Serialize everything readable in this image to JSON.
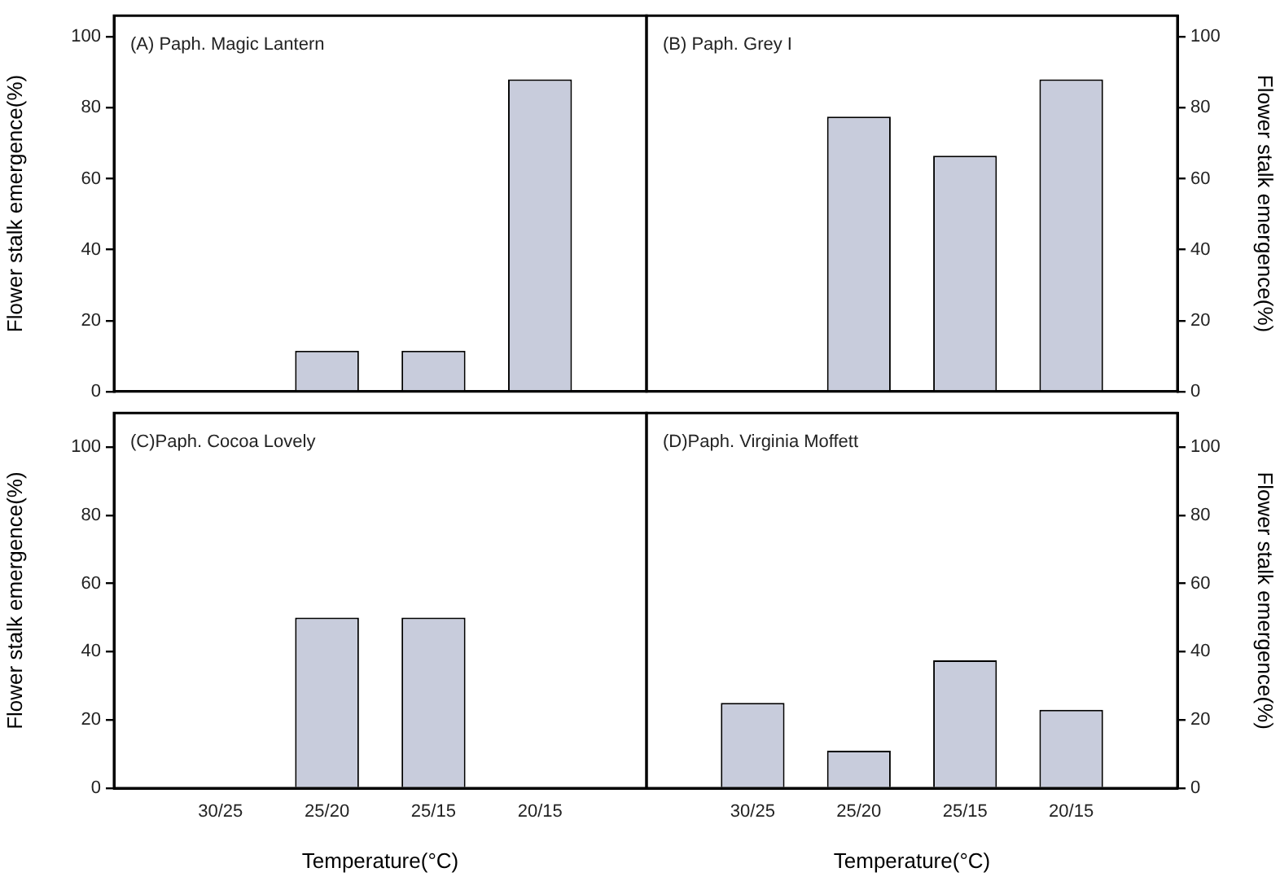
{
  "chart_data": [
    {
      "type": "bar",
      "title": "(A) Paph. Magic Lantern",
      "ylabel": "Flower stalk emergence(%)",
      "categories": [
        null,
        null,
        null,
        null
      ],
      "values": [
        0,
        11.5,
        11.5,
        88
      ],
      "color": "#c8ccdc",
      "ylim": [
        0,
        106
      ],
      "yticks": [
        0,
        20,
        40,
        60,
        80,
        100
      ],
      "tick_labels": "y"
    },
    {
      "type": "bar",
      "title": "(B) Paph. Grey I",
      "y2label": "Flower stalk emergence(%)",
      "categories": [
        null,
        null,
        null,
        null
      ],
      "series": [
        {
          "values": [
            0,
            77.5,
            66.5,
            88
          ],
          "color": "#c8ccdc",
          "axis": "y2"
        }
      ],
      "y2lim": [
        0,
        106
      ],
      "y2ticks": [
        0,
        20,
        40,
        60,
        80,
        100
      ],
      "tick_labels": "y"
    },
    {
      "type": "bar",
      "title": "(C)Paph. Cocoa Lovely",
      "xlabel": "Temperature(°C)",
      "ylabel": "Flower stalk emergence(%)",
      "categories": [
        "30/25",
        "25/20",
        "25/15",
        "20/15"
      ],
      "values": [
        0,
        50,
        50,
        0
      ],
      "color": "#c8ccdc",
      "ylim": [
        0,
        110
      ],
      "yticks": [
        0,
        20,
        40,
        60,
        80,
        100
      ]
    },
    {
      "type": "bar",
      "title": "(D)Paph. Virginia Moffett",
      "xlabel": "Temperature(°C)",
      "y2label": "Flower stalk emergence(%)",
      "categories": [
        "30/25",
        "25/20",
        "25/15",
        "20/15"
      ],
      "series": [
        {
          "values": [
            25,
            11,
            37.5,
            23
          ],
          "color": "#c8ccdc",
          "axis": "y2"
        }
      ],
      "y2lim": [
        0,
        110
      ],
      "y2ticks": [
        0,
        20,
        40,
        60,
        80,
        100
      ]
    }
  ]
}
